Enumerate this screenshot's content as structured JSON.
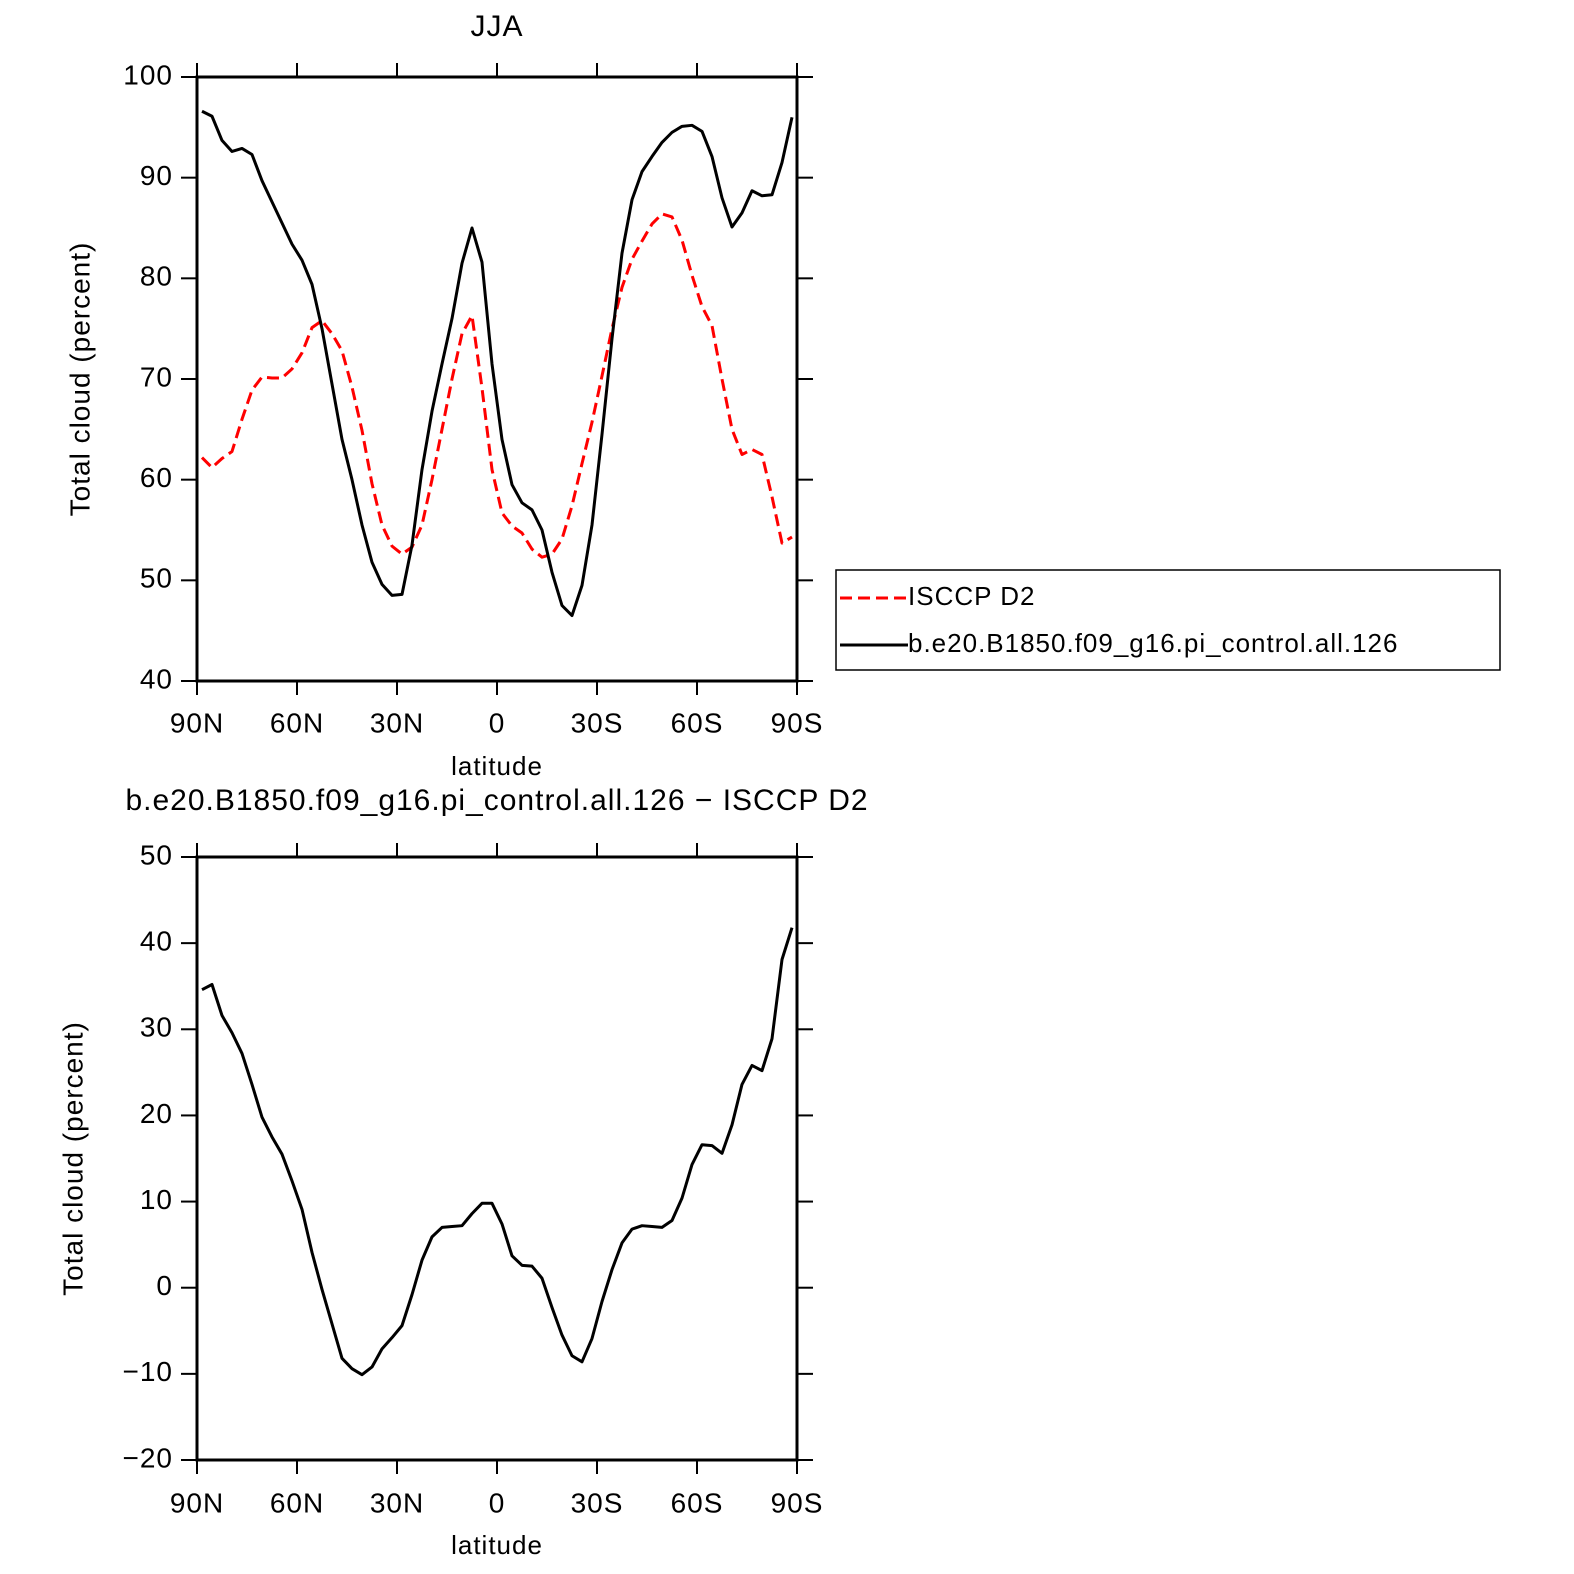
{
  "chart_data": [
    {
      "type": "line",
      "title": "JJA",
      "x_label": "latitude",
      "y_label": "Total cloud (percent)",
      "x": [
        88.5,
        85.5,
        82.5,
        79.5,
        76.5,
        73.5,
        70.5,
        67.5,
        64.5,
        61.5,
        58.5,
        55.5,
        52.5,
        49.5,
        46.5,
        43.5,
        40.5,
        37.5,
        34.5,
        31.5,
        28.5,
        25.5,
        22.5,
        19.5,
        16.5,
        13.5,
        10.5,
        7.5,
        4.5,
        1.5,
        -1.5,
        -4.5,
        -7.5,
        -10.5,
        -13.5,
        -16.5,
        -19.5,
        -22.5,
        -25.5,
        -28.5,
        -31.5,
        -34.5,
        -37.5,
        -40.5,
        -43.5,
        -46.5,
        -49.5,
        -52.5,
        -55.5,
        -58.5,
        -61.5,
        -64.5,
        -67.5,
        -70.5,
        -73.5,
        -76.5,
        -79.5,
        -82.5,
        -85.5,
        -88.5
      ],
      "xlim": [
        90,
        -90
      ],
      "xticks": [
        {
          "value": 90,
          "label": "90N"
        },
        {
          "value": 60,
          "label": "60N"
        },
        {
          "value": 30,
          "label": "30N"
        },
        0,
        {
          "value": -30,
          "label": "30S"
        },
        {
          "value": -60,
          "label": "60S"
        },
        {
          "value": -90,
          "label": "90S"
        }
      ],
      "ylim": [
        40,
        100
      ],
      "yticks": [
        40,
        50,
        60,
        70,
        80,
        90,
        100
      ],
      "legend": "right",
      "series": [
        {
          "name": "ISCCP D2",
          "color": "#ff0000",
          "line_style": "dashed",
          "values": [
            62.2,
            61.2,
            62.1,
            62.8,
            66.0,
            68.9,
            70.2,
            70.1,
            70.1,
            71.0,
            72.6,
            75.1,
            75.8,
            74.5,
            72.8,
            69.2,
            64.9,
            59.6,
            55.5,
            53.4,
            52.6,
            53.3,
            55.5,
            60.0,
            65.0,
            70.0,
            74.5,
            76.3,
            69.1,
            61.0,
            56.7,
            55.4,
            54.7,
            53.1,
            52.3,
            52.6,
            54.1,
            57.4,
            61.6,
            65.7,
            70.3,
            75.0,
            79.1,
            81.9,
            83.7,
            85.4,
            86.4,
            86.1,
            83.8,
            80.3,
            77.2,
            75.3,
            70.0,
            65.0,
            62.5,
            63.0,
            62.5,
            58.3,
            53.7,
            54.3
          ]
        },
        {
          "name": "b.e20.B1850.f09_g16.pi_control.all.126",
          "color": "#000000",
          "line_style": "solid",
          "values": [
            96.6,
            96.1,
            93.7,
            92.6,
            92.9,
            92.3,
            89.7,
            87.6,
            85.5,
            83.4,
            81.8,
            79.4,
            75.0,
            69.5,
            64.0,
            60.0,
            55.5,
            51.8,
            49.6,
            48.5,
            48.6,
            53.5,
            61.0,
            66.8,
            71.5,
            76.0,
            81.5,
            85.0,
            81.6,
            71.5,
            64.0,
            59.5,
            57.7,
            57.0,
            55.0,
            50.8,
            47.5,
            46.5,
            49.5,
            55.5,
            64.5,
            74.0,
            82.5,
            87.8,
            90.6,
            92.1,
            93.5,
            94.5,
            95.1,
            95.2,
            94.6,
            92.1,
            88.0,
            85.1,
            86.5,
            88.7,
            88.2,
            88.3,
            91.5,
            96.0
          ]
        }
      ]
    },
    {
      "type": "line",
      "title": "b.e20.B1850.f09_g16.pi_control.all.126 − ISCCP D2",
      "x_label": "latitude",
      "y_label": "Total cloud (percent)",
      "x": [
        88.5,
        85.5,
        82.5,
        79.5,
        76.5,
        73.5,
        70.5,
        67.5,
        64.5,
        61.5,
        58.5,
        55.5,
        52.5,
        49.5,
        46.5,
        43.5,
        40.5,
        37.5,
        34.5,
        31.5,
        28.5,
        25.5,
        22.5,
        19.5,
        16.5,
        13.5,
        10.5,
        7.5,
        4.5,
        1.5,
        -1.5,
        -4.5,
        -7.5,
        -10.5,
        -13.5,
        -16.5,
        -19.5,
        -22.5,
        -25.5,
        -28.5,
        -31.5,
        -34.5,
        -37.5,
        -40.5,
        -43.5,
        -46.5,
        -49.5,
        -52.5,
        -55.5,
        -58.5,
        -61.5,
        -64.5,
        -67.5,
        -70.5,
        -73.5,
        -76.5,
        -79.5,
        -82.5,
        -85.5,
        -88.5
      ],
      "xlim": [
        90,
        -90
      ],
      "xticks": [
        {
          "value": 90,
          "label": "90N"
        },
        {
          "value": 60,
          "label": "60N"
        },
        {
          "value": 30,
          "label": "30N"
        },
        0,
        {
          "value": -30,
          "label": "30S"
        },
        {
          "value": -60,
          "label": "60S"
        },
        {
          "value": -90,
          "label": "90S"
        }
      ],
      "ylim": [
        -20,
        50
      ],
      "yticks": [
        {
          "value": -20,
          "label": "−20"
        },
        {
          "value": -10,
          "label": "−10"
        },
        0,
        10,
        20,
        30,
        40,
        50
      ],
      "series": [
        {
          "color": "#000000",
          "line_style": "solid",
          "values": [
            34.6,
            35.2,
            31.6,
            29.6,
            27.2,
            23.6,
            19.8,
            17.5,
            15.5,
            12.4,
            9.1,
            4.1,
            -0.2,
            -4.2,
            -8.2,
            -9.4,
            -10.1,
            -9.2,
            -7.1,
            -5.8,
            -4.4,
            -0.8,
            3.2,
            5.9,
            7.0,
            7.1,
            7.2,
            8.6,
            9.8,
            9.8,
            7.4,
            3.7,
            2.6,
            2.5,
            1.1,
            -2.3,
            -5.5,
            -7.9,
            -8.6,
            -5.9,
            -1.6,
            2.1,
            5.2,
            6.8,
            7.2,
            7.1,
            7.0,
            7.8,
            10.4,
            14.3,
            16.6,
            16.5,
            15.6,
            18.9,
            23.6,
            25.8,
            25.2,
            28.9,
            38.1,
            41.8
          ]
        }
      ]
    }
  ]
}
